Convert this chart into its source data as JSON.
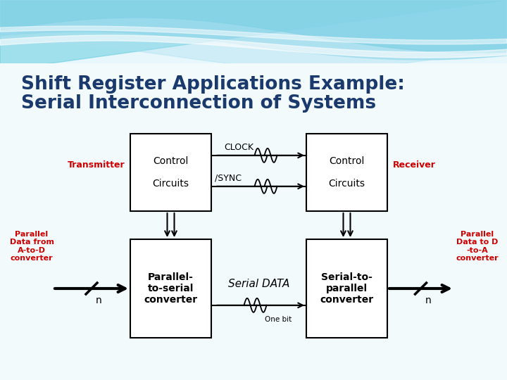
{
  "title_line1": "Shift Register Applications Example:",
  "title_line2": "  Serial Interconnection of Systems",
  "title_color": "#1a3a6e",
  "title_fontsize": 19,
  "bg_color": "#f0f8ff",
  "box_edge_color": "#000000",
  "box_text_color": "#000000",
  "red_label_color": "#cc0000",
  "arrow_color": "#000000",
  "transmitter_label": "Transmitter",
  "receiver_label": "Receiver",
  "control_circuits_label": "Control\n\nCircuits",
  "parallel_to_serial_label": "Parallel-\nto-serial\nconverter",
  "serial_to_parallel_label": "Serial-to-\nparallel\nconverter",
  "parallel_data_from_label": "Parallel\nData from\nA-to-D\nconverter",
  "parallel_data_to_label": "Parallel\nData to D\n-to-A\nconverter",
  "serial_data_label": "Serial DATA",
  "clock_label": "CLOCK",
  "sync_label": "/SYNC",
  "one_bit_label": "One bit",
  "n_label": "n",
  "wave_color": "#000000",
  "wave_top1_color": "#5dd0e8",
  "wave_top2_color": "#93dff0",
  "wave_top3_color": "#c5eef8",
  "wave_top4_color": "#e0f6fd"
}
